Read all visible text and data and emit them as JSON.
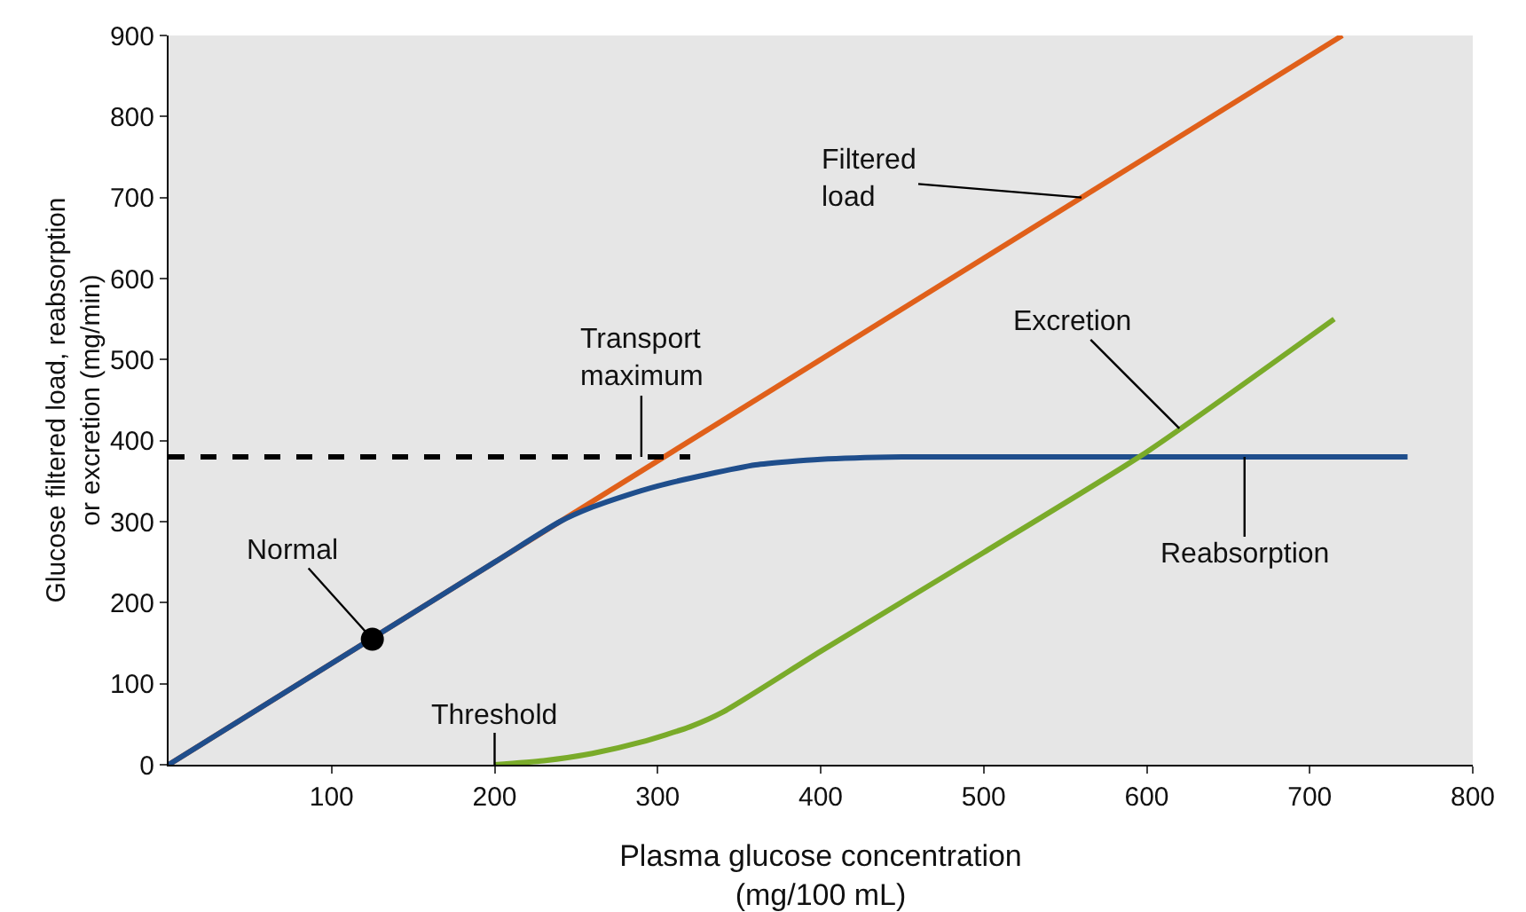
{
  "chart_data": {
    "type": "line",
    "xlabel": "Plasma glucose concentration\n(mg/100 mL)",
    "ylabel": "Glucose filtered load, reabsorption\nor excretion (mg/min)",
    "xlim": [
      0,
      800
    ],
    "xticks": [
      100,
      200,
      300,
      400,
      500,
      600,
      700,
      800
    ],
    "ylim": [
      0,
      900
    ],
    "yticks": [
      0,
      100,
      200,
      300,
      400,
      500,
      600,
      700,
      800,
      900
    ],
    "grid": false,
    "marker": "none",
    "line_style": "solid",
    "series": [
      {
        "color": "#e0601a",
        "x": [
          0,
          720
        ],
        "values": [
          0,
          900
        ]
      },
      {
        "color": "#1f4e8c",
        "x": [
          0,
          200,
          240,
          260,
          280,
          300,
          330,
          360,
          400,
          450,
          760
        ],
        "values": [
          0,
          250,
          300,
          318,
          332,
          344,
          358,
          370,
          377,
          380,
          380
        ]
      },
      {
        "color": "#7aab2a",
        "x": [
          200,
          230,
          260,
          290,
          320,
          340,
          400,
          500,
          600,
          715
        ],
        "values": [
          0,
          5,
          14,
          28,
          47,
          65,
          140,
          262,
          386,
          550
        ]
      },
      {
        "color": "#000000",
        "x": [
          0,
          320
        ],
        "values": [
          380,
          380
        ],
        "line_style": "dashed"
      },
      {
        "type": "scatter",
        "color": "#000000",
        "x": [
          125
        ],
        "values": [
          155
        ],
        "marker": "circle"
      }
    ],
    "annotations": [
      {
        "text": "Filtered\nload",
        "x": 560,
        "y": 700
      },
      {
        "text": "Transport\nmaximum",
        "x": 290,
        "y": 380
      },
      {
        "text": "Excretion",
        "x": 620,
        "y": 415
      },
      {
        "text": "Reabsorption",
        "x": 660,
        "y": 380
      },
      {
        "text": "Normal",
        "x": 125,
        "y": 155
      },
      {
        "text": "Threshold",
        "x": 200,
        "y": 0
      }
    ]
  }
}
